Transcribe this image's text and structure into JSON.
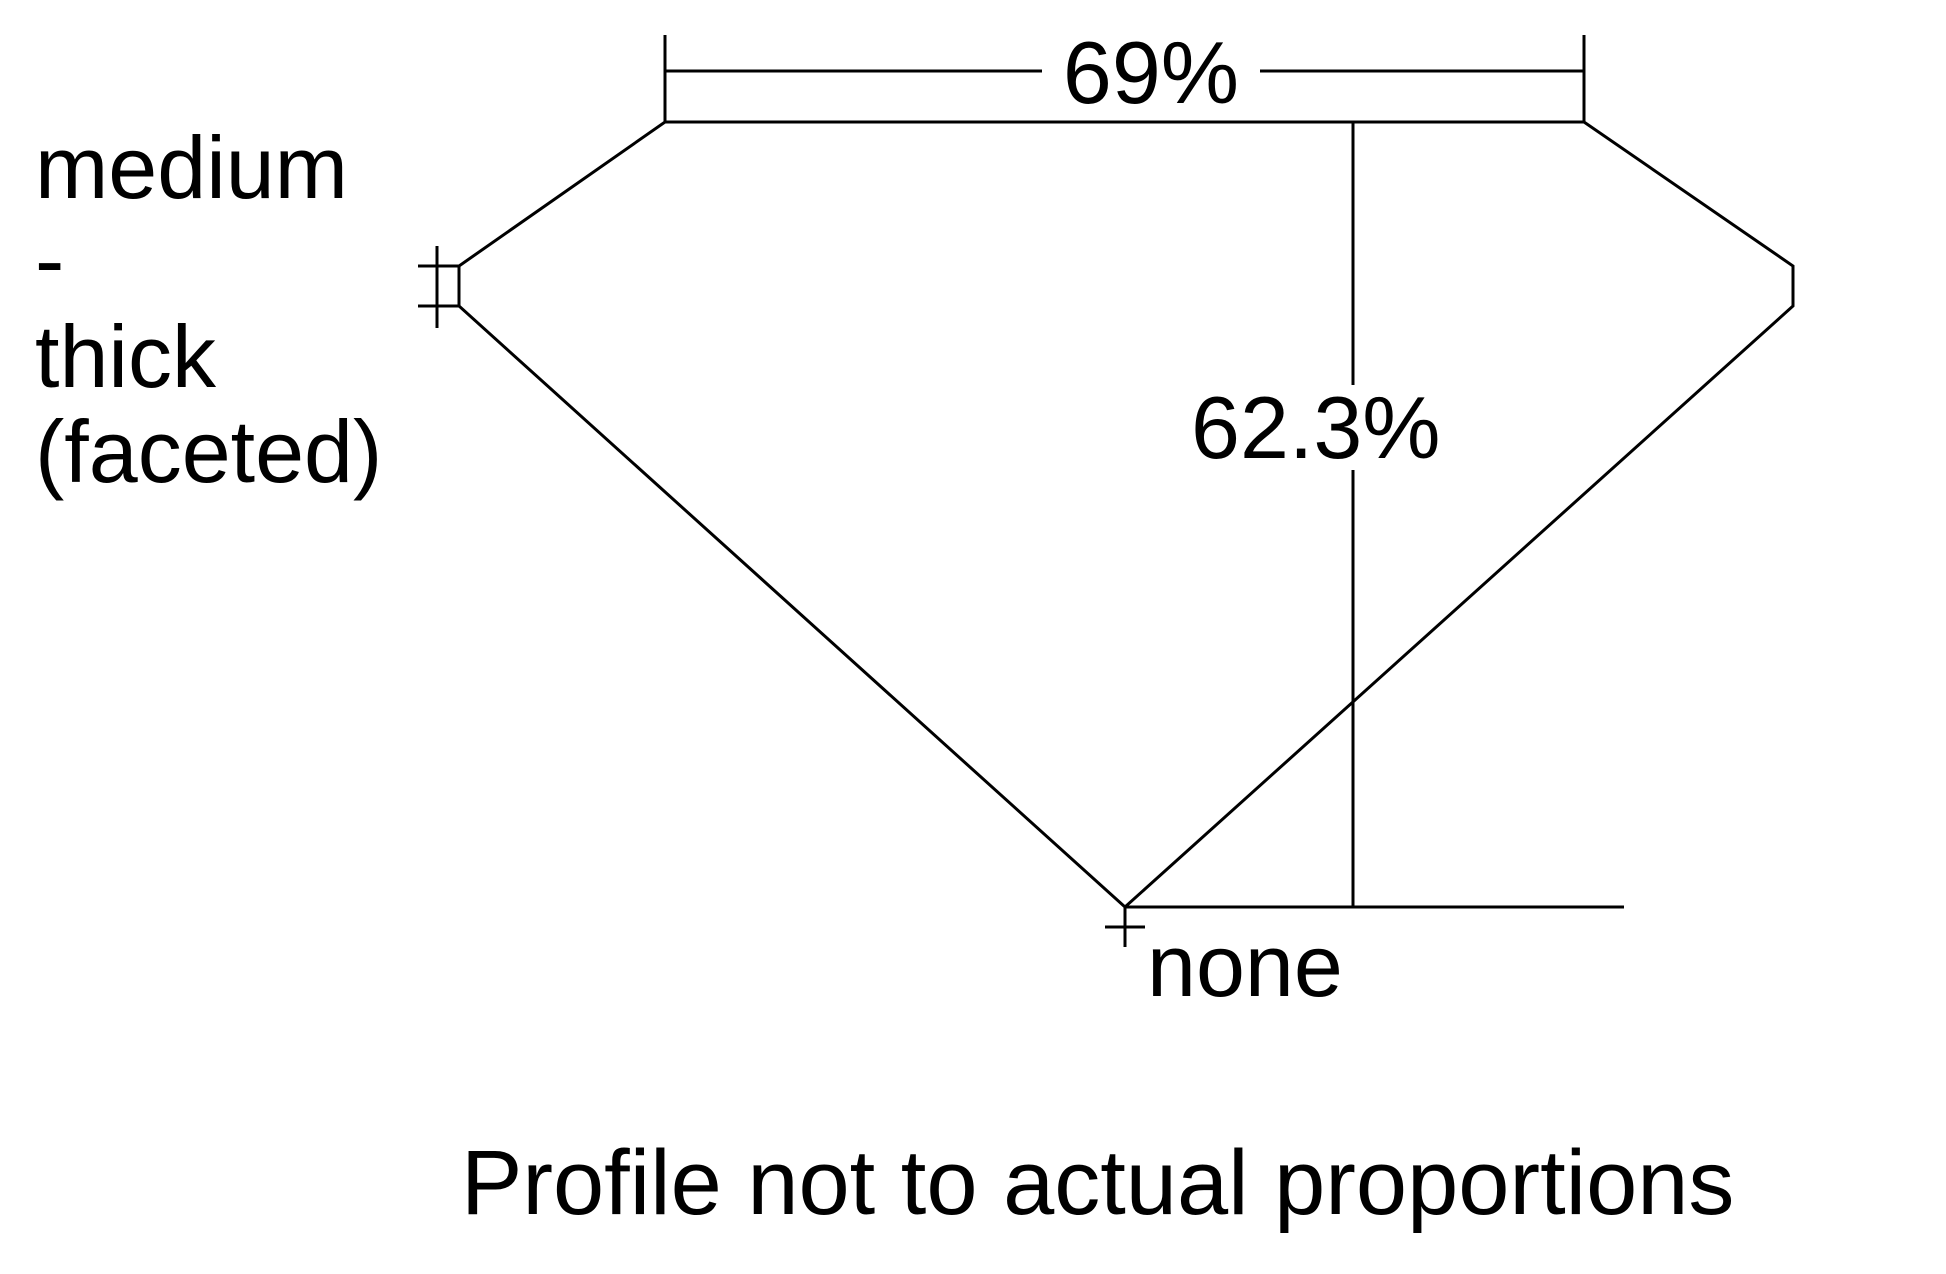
{
  "diagram": {
    "table_percent": "69%",
    "depth_percent": "62.3%",
    "girdle_label_lines": [
      "medium",
      "-",
      "thick",
      "(faceted)"
    ],
    "culet_label": "none",
    "footnote": "Profile not to actual proportions",
    "line_color": "#000000",
    "background_color": "#ffffff"
  }
}
